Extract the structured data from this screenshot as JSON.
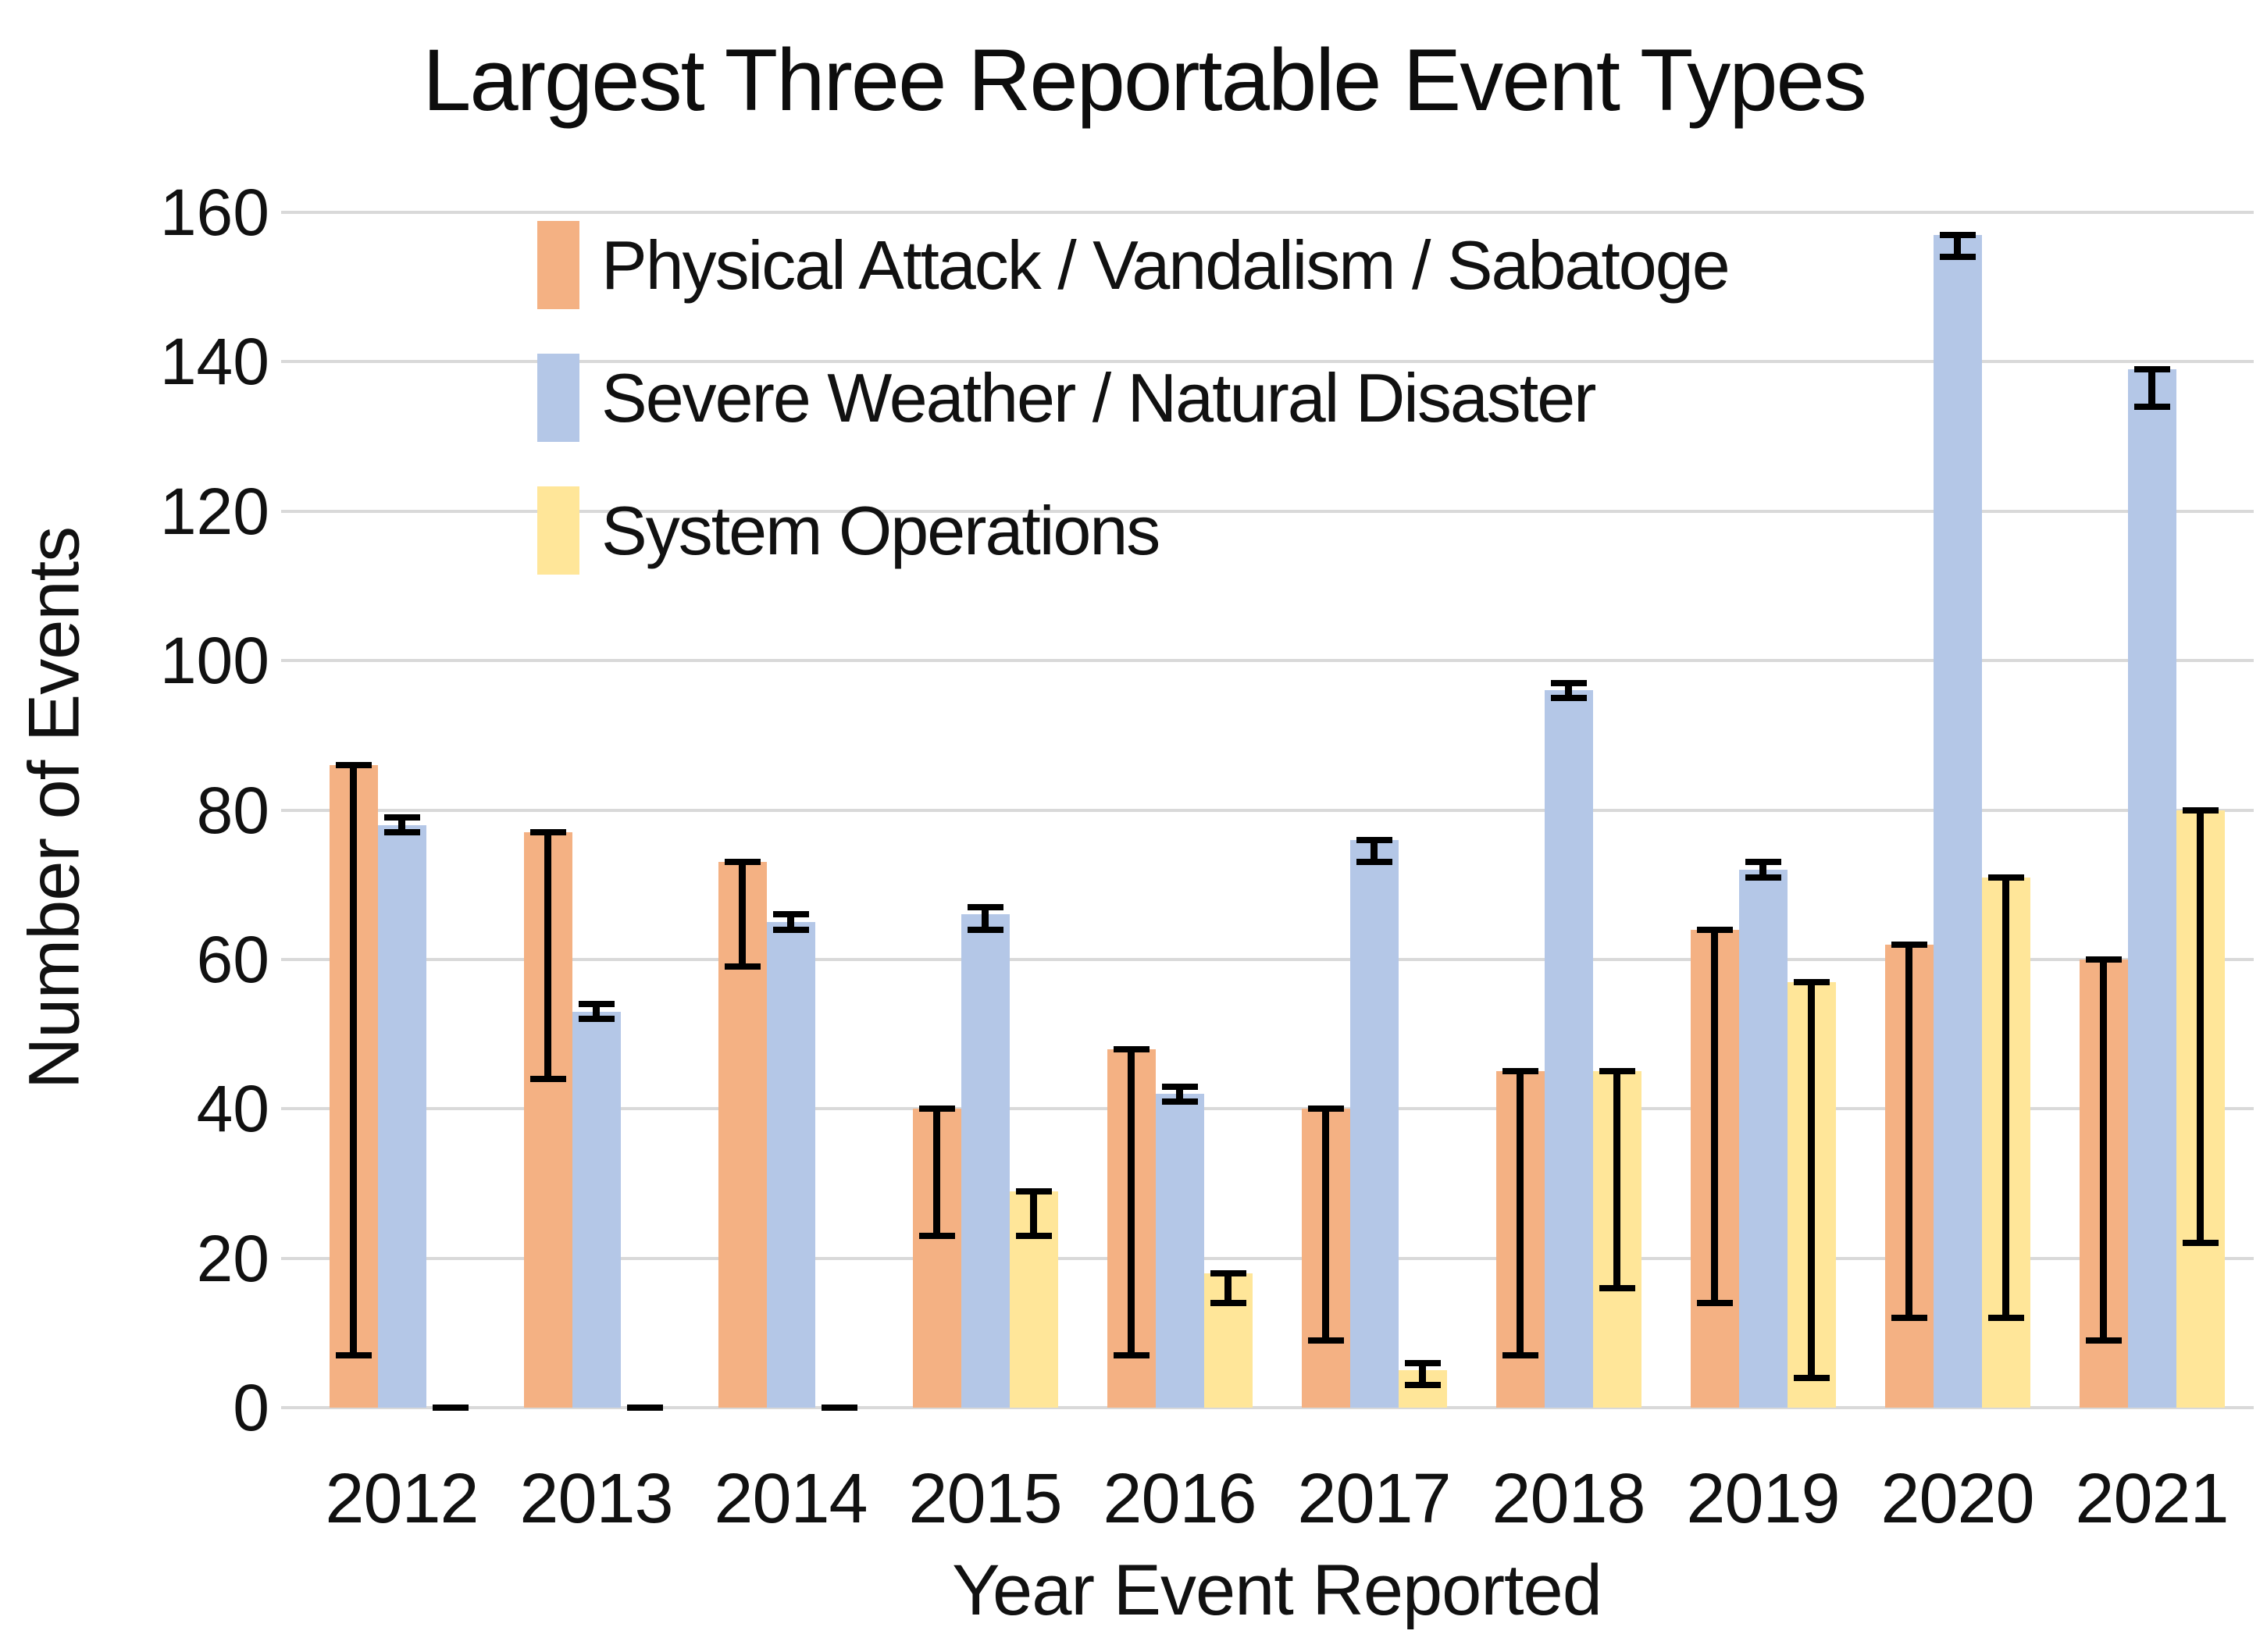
{
  "title": "Largest Three Reportable Event Types",
  "colors": {
    "background": "#FFFFFF",
    "gridline": "#D9D9D9",
    "text": "#111111",
    "error_bar": "#000000",
    "series_orange": "#F4B183",
    "series_blue": "#B4C7E7",
    "series_yellow": "#FFE699"
  },
  "chart_data": {
    "type": "bar",
    "title": "Largest Three Reportable Event Types",
    "xlabel": "Year Event Reported",
    "ylabel": "Number of Events",
    "ylim": [
      0,
      160
    ],
    "yticks": [
      0,
      20,
      40,
      60,
      80,
      100,
      120,
      140,
      160
    ],
    "grid": true,
    "legend_position": "inside-top-left",
    "categories": [
      "2012",
      "2013",
      "2014",
      "2015",
      "2016",
      "2017",
      "2018",
      "2019",
      "2020",
      "2021"
    ],
    "series": [
      {
        "name": "Physical Attack / Vandalism / Sabatoge",
        "color": "#F4B183",
        "values": [
          86,
          77,
          73,
          40,
          48,
          40,
          45,
          64,
          62,
          60
        ],
        "error_low": [
          7,
          44,
          59,
          23,
          7,
          9,
          7,
          14,
          12,
          9
        ],
        "error_high": [
          86,
          77,
          73,
          40,
          48,
          40,
          45,
          64,
          62,
          60
        ]
      },
      {
        "name": "Severe Weather / Natural Disaster",
        "color": "#B4C7E7",
        "values": [
          78,
          53,
          65,
          66,
          42,
          76,
          96,
          72,
          157,
          139
        ],
        "error_low": [
          77,
          52,
          64,
          64,
          41,
          73,
          95,
          71,
          154,
          134
        ],
        "error_high": [
          79,
          54,
          66,
          67,
          43,
          76,
          97,
          73,
          157,
          139
        ]
      },
      {
        "name": "System Operations",
        "color": "#FFE699",
        "values": [
          0,
          0,
          0,
          29,
          18,
          5,
          45,
          57,
          71,
          80
        ],
        "error_low": [
          0,
          0,
          0,
          23,
          14,
          3,
          16,
          4,
          12,
          22
        ],
        "error_high": [
          0,
          0,
          0,
          29,
          18,
          6,
          45,
          57,
          71,
          80
        ]
      }
    ]
  }
}
